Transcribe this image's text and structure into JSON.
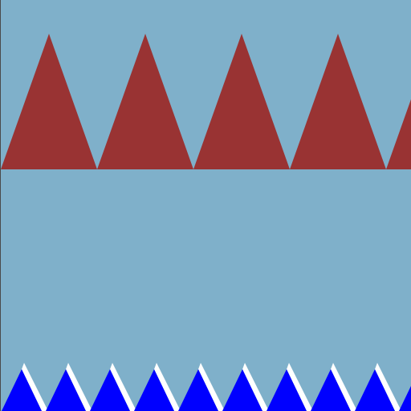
{
  "scene": {
    "background_color": "#7fb0ca",
    "left_border_color": "#4a4a4a"
  },
  "ceiling_spikes": {
    "color": "#993333",
    "count": 5
  },
  "floor_spikes": {
    "color": "#0000ff",
    "highlight_color": "#ffffff",
    "count": 10
  }
}
